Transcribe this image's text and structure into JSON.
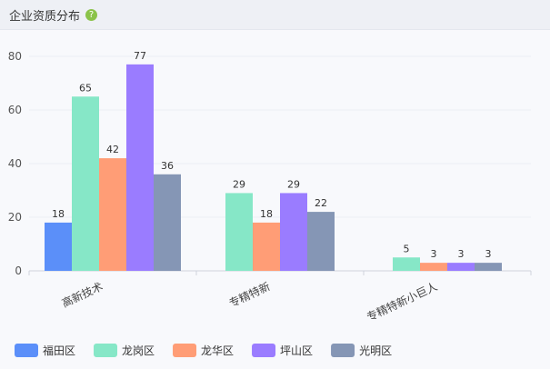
{
  "panel": {
    "title": "企业资质分布",
    "help_icon": "question-circle-icon",
    "help_glyph": "?"
  },
  "chart_data": {
    "type": "bar",
    "categories": [
      "高新技术",
      "专精特新",
      "专精特新小巨人"
    ],
    "series": [
      {
        "name": "福田区",
        "color": "#5b8ff9",
        "values": [
          18,
          0,
          0
        ]
      },
      {
        "name": "龙岗区",
        "color": "#86e7c7",
        "values": [
          65,
          29,
          5
        ]
      },
      {
        "name": "龙华区",
        "color": "#ff9d76",
        "values": [
          42,
          18,
          3
        ]
      },
      {
        "name": "坪山区",
        "color": "#9a7cff",
        "values": [
          77,
          29,
          3
        ]
      },
      {
        "name": "光明区",
        "color": "#8596b5",
        "values": [
          36,
          22,
          3
        ]
      }
    ],
    "ylim": [
      0,
      80
    ],
    "yticks": [
      0,
      20,
      40,
      60,
      80
    ],
    "grid": true,
    "legend": "bottom-left"
  }
}
